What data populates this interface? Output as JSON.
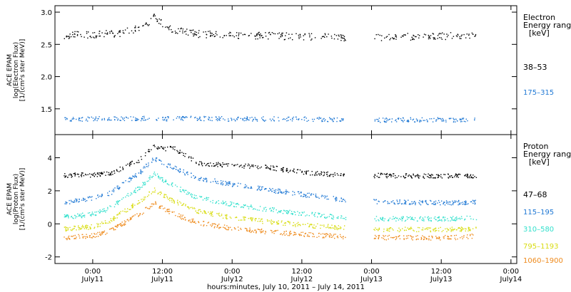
{
  "chart_data": [
    {
      "type": "scatter",
      "title": "",
      "ylabel_lines": [
        "ACE EPAM",
        "log(Electron Flux)",
        "[1/(cm²s ster MeV)]"
      ],
      "ylim": [
        1.1,
        3.1
      ],
      "yticks": [
        1.5,
        2.0,
        2.5,
        3.0
      ],
      "ytick_labels": [
        "1.5",
        "2.0",
        "2.5",
        "3.0"
      ],
      "legend_title_lines": [
        "Electron",
        "Energy range",
        "[keV]"
      ],
      "legend_placement": "right",
      "series": [
        {
          "name": "38–53",
          "color": "#000000",
          "values": [
            [
              -5,
              2.65
            ],
            [
              0,
              2.66
            ],
            [
              5,
              2.68
            ],
            [
              9.6,
              2.82
            ],
            [
              10.3,
              2.95
            ],
            [
              11,
              2.9
            ],
            [
              13,
              2.75
            ],
            [
              18,
              2.67
            ],
            [
              24,
              2.65
            ],
            [
              30,
              2.64
            ],
            [
              36,
              2.63
            ],
            [
              43,
              2.61
            ],
            [
              51,
              2.62
            ],
            [
              57,
              2.63
            ],
            [
              63,
              2.64
            ],
            [
              66,
              2.63
            ]
          ]
        },
        {
          "name": "175–315",
          "color": "#1f78d4",
          "values": [
            [
              -5,
              1.34
            ],
            [
              0,
              1.35
            ],
            [
              6,
              1.36
            ],
            [
              12,
              1.35
            ],
            [
              18,
              1.36
            ],
            [
              24,
              1.35
            ],
            [
              30,
              1.35
            ],
            [
              36,
              1.35
            ],
            [
              43,
              1.34
            ],
            [
              51,
              1.33
            ],
            [
              57,
              1.34
            ],
            [
              63,
              1.33
            ],
            [
              66,
              1.33
            ]
          ]
        }
      ],
      "data_gap": [
        43.5,
        48.3
      ],
      "grid": false
    },
    {
      "type": "scatter",
      "title": "",
      "ylabel_lines": [
        "ACE EPAM",
        "log(Proton Flux)",
        "[1/(cm²s ster MeV)]"
      ],
      "ylim": [
        -2.4,
        5.4
      ],
      "yticks": [
        -2,
        0,
        2,
        4
      ],
      "ytick_labels": [
        "-2",
        "0",
        "2",
        "4"
      ],
      "xlabel": "hours:minutes, July 10, 2011 – July 14, 2011",
      "xlim": [
        -6.5,
        73
      ],
      "xticks": [
        0,
        12,
        24,
        36,
        48,
        60,
        72
      ],
      "xtick_labels": [
        [
          "0:00",
          "July11"
        ],
        [
          "12:00",
          "July11"
        ],
        [
          "0:00",
          "July12"
        ],
        [
          "12:00",
          "July12"
        ],
        [
          "0:00",
          "July13"
        ],
        [
          "12:00",
          "July13"
        ],
        [
          "0:00",
          "July14"
        ]
      ],
      "legend_title_lines": [
        "Proton",
        "Energy range",
        "[keV]"
      ],
      "legend_placement": "right",
      "series": [
        {
          "name": "47–68",
          "color": "#000000",
          "values": [
            [
              -5,
              2.95
            ],
            [
              0,
              3.0
            ],
            [
              3,
              3.05
            ],
            [
              5,
              3.4
            ],
            [
              8,
              3.9
            ],
            [
              10.5,
              4.7
            ],
            [
              12,
              4.55
            ],
            [
              14,
              4.6
            ],
            [
              14.5,
              4.45
            ],
            [
              18,
              3.7
            ],
            [
              24,
              3.55
            ],
            [
              30,
              3.45
            ],
            [
              36,
              3.15
            ],
            [
              43,
              2.98
            ],
            [
              48.5,
              2.95
            ],
            [
              57,
              2.92
            ],
            [
              63,
              2.92
            ],
            [
              66,
              2.95
            ]
          ]
        },
        {
          "name": "115–195",
          "color": "#1f78d4",
          "values": [
            [
              -5,
              1.3
            ],
            [
              0,
              1.6
            ],
            [
              3,
              1.9
            ],
            [
              5,
              2.4
            ],
            [
              8,
              3.1
            ],
            [
              10.5,
              4.0
            ],
            [
              12,
              3.7
            ],
            [
              14,
              3.4
            ],
            [
              18,
              2.8
            ],
            [
              24,
              2.4
            ],
            [
              30,
              2.1
            ],
            [
              36,
              1.8
            ],
            [
              43,
              1.5
            ],
            [
              48.5,
              1.38
            ],
            [
              57,
              1.3
            ],
            [
              63,
              1.32
            ],
            [
              66,
              1.35
            ]
          ]
        },
        {
          "name": "310–580",
          "color": "#32e0cc",
          "values": [
            [
              -5,
              0.45
            ],
            [
              0,
              0.6
            ],
            [
              3,
              1.0
            ],
            [
              5,
              1.5
            ],
            [
              8,
              2.2
            ],
            [
              10.5,
              3.1
            ],
            [
              12,
              2.7
            ],
            [
              14,
              2.3
            ],
            [
              18,
              1.6
            ],
            [
              24,
              1.2
            ],
            [
              30,
              0.9
            ],
            [
              36,
              0.65
            ],
            [
              43,
              0.4
            ],
            [
              48.5,
              0.35
            ],
            [
              57,
              0.32
            ],
            [
              63,
              0.35
            ],
            [
              66,
              0.4
            ]
          ]
        },
        {
          "name": "795–1193",
          "color": "#d8dc10",
          "values": [
            [
              -5,
              -0.3
            ],
            [
              0,
              -0.15
            ],
            [
              3,
              0.2
            ],
            [
              5,
              0.7
            ],
            [
              8,
              1.4
            ],
            [
              10.5,
              2.1
            ],
            [
              12,
              1.8
            ],
            [
              14,
              1.4
            ],
            [
              18,
              0.8
            ],
            [
              24,
              0.4
            ],
            [
              30,
              0.15
            ],
            [
              36,
              -0.05
            ],
            [
              43,
              -0.2
            ],
            [
              48.5,
              -0.3
            ],
            [
              57,
              -0.32
            ],
            [
              63,
              -0.3
            ],
            [
              66,
              -0.25
            ]
          ]
        },
        {
          "name": "1060–1900",
          "color": "#ee8a1c",
          "values": [
            [
              -5,
              -0.8
            ],
            [
              0,
              -0.7
            ],
            [
              3,
              -0.4
            ],
            [
              5,
              0.0
            ],
            [
              8,
              0.6
            ],
            [
              10.5,
              1.3
            ],
            [
              12,
              1.0
            ],
            [
              14,
              0.6
            ],
            [
              18,
              0.1
            ],
            [
              24,
              -0.25
            ],
            [
              30,
              -0.45
            ],
            [
              36,
              -0.6
            ],
            [
              43,
              -0.75
            ],
            [
              48.5,
              -0.8
            ],
            [
              57,
              -0.82
            ],
            [
              63,
              -0.8
            ],
            [
              66,
              -0.7
            ]
          ]
        }
      ],
      "data_gap": [
        43.5,
        48.3
      ],
      "grid": false
    }
  ]
}
